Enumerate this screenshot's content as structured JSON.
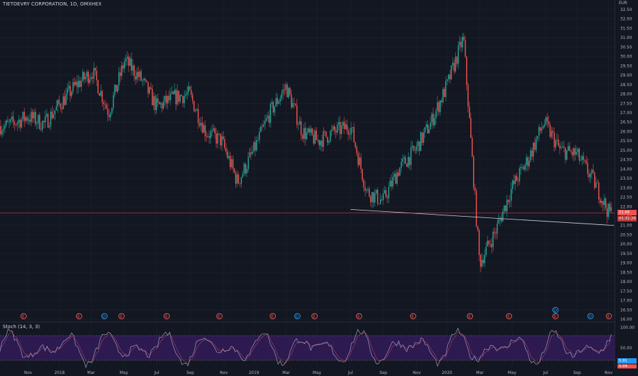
{
  "header": {
    "symbol_title": "TIETOEVRY CORPORATION, 1D, OMXHEX",
    "currency": "EUR",
    "indicator_label": "Stoch (14, 3, 3)"
  },
  "price_axis": {
    "ticks": [
      "32.50",
      "32.00",
      "31.50",
      "31.00",
      "30.50",
      "30.00",
      "29.50",
      "29.00",
      "28.50",
      "28.00",
      "27.50",
      "27.00",
      "26.50",
      "26.00",
      "25.50",
      "25.00",
      "24.50",
      "24.00",
      "23.50",
      "23.00",
      "22.50",
      "22.00",
      "21.50",
      "21.00",
      "20.50",
      "20.00",
      "19.50",
      "19.00",
      "18.50",
      "18.00",
      "17.50",
      "17.00",
      "16.50",
      "16.00"
    ],
    "last_price_tag": "21.66",
    "countdown_tag": "01:31:29"
  },
  "stoch_axis": {
    "ticks": [
      "100.00",
      "50.00"
    ],
    "k_tag": "5.91",
    "d_tag": "5.09"
  },
  "time_axis": {
    "labels": [
      "Nov",
      "2018",
      "Mar",
      "May",
      "Jul",
      "Sep",
      "Nov",
      "2019",
      "Mar",
      "May",
      "Jul",
      "Sep",
      "Nov",
      "2020",
      "Mar",
      "May",
      "Jul",
      "Sep",
      "Nov"
    ]
  },
  "events": [
    {
      "type": "E",
      "label": "E"
    },
    {
      "type": "E",
      "label": "E"
    },
    {
      "type": "D",
      "label": "D"
    },
    {
      "type": "E",
      "label": "E"
    },
    {
      "type": "E",
      "label": "E"
    },
    {
      "type": "E",
      "label": "E"
    },
    {
      "type": "E",
      "label": "E"
    },
    {
      "type": "D",
      "label": "D"
    },
    {
      "type": "E",
      "label": "E"
    },
    {
      "type": "E",
      "label": "E"
    },
    {
      "type": "E",
      "label": "E"
    },
    {
      "type": "E",
      "label": "E"
    },
    {
      "type": "E",
      "label": "E"
    },
    {
      "type": "D",
      "label": "D"
    },
    {
      "type": "E",
      "label": "E"
    },
    {
      "type": "D",
      "label": "D"
    },
    {
      "type": "E",
      "label": "E"
    }
  ],
  "colors": {
    "background": "#131722",
    "up": "#26a69a",
    "down": "#ef5350",
    "grid": "#1e222d",
    "trendline": "#d1d4dc",
    "stoch_k": "#7e57c2",
    "stoch_fill": "#311b58",
    "last_price": "#ef5350",
    "stoch_k_tag": "#2196f3",
    "stoch_d_tag": "#ef5350"
  },
  "chart_data": {
    "type": "candlestick",
    "x": [
      "Oct 2017",
      "Nov 2017",
      "Dec 2017",
      "2018",
      "Feb 2018",
      "Mar 2018",
      "Apr 2018",
      "May 2018",
      "Jun 2018",
      "Jul 2018",
      "Aug 2018",
      "Sep 2018",
      "Oct 2018",
      "Nov 2018",
      "Dec 2018",
      "2019",
      "Feb 2019",
      "Mar 2019",
      "Apr 2019",
      "May 2019",
      "Jun 2019",
      "Jul 2019",
      "Aug 2019",
      "Sep 2019",
      "Oct 2019",
      "Nov 2019",
      "Dec 2019",
      "2020",
      "Feb 2020",
      "Mar 2020",
      "Apr 2020",
      "May 2020",
      "Jun 2020",
      "Jul 2020",
      "Aug 2020",
      "Sep 2020",
      "Oct 2020",
      "Nov 2020"
    ],
    "close": [
      26.3,
      26.8,
      26.4,
      27.5,
      28.5,
      29.2,
      27.0,
      29.8,
      28.8,
      27.3,
      27.8,
      28.0,
      26.0,
      25.5,
      23.3,
      25.0,
      27.0,
      28.4,
      26.0,
      25.5,
      26.0,
      26.3,
      22.8,
      22.3,
      24.0,
      25.0,
      26.5,
      28.5,
      31.0,
      19.0,
      20.7,
      23.0,
      24.5,
      26.5,
      25.0,
      24.8,
      23.5,
      21.7
    ],
    "ylim": [
      16.0,
      32.5
    ],
    "trendline": {
      "from": [
        "Jul 2019",
        21.85
      ],
      "to": [
        "Nov 2020",
        21.0
      ]
    },
    "last_price": 21.66,
    "stochastic": {
      "label": "Stoch (14, 3, 3)",
      "k_last": 5.91,
      "d_last": 5.09,
      "ylim": [
        0,
        100
      ],
      "bands": [
        20,
        80
      ]
    }
  }
}
